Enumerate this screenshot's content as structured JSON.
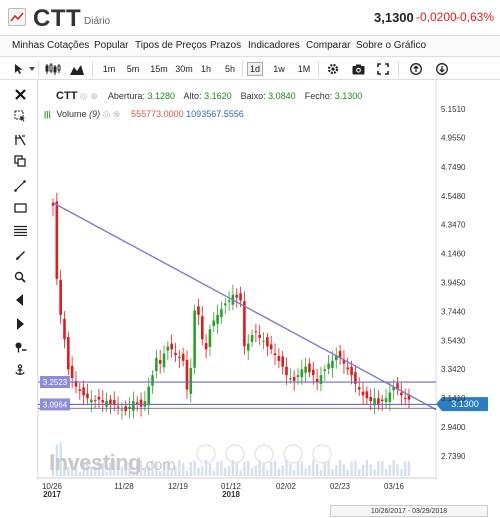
{
  "header": {
    "symbol": "CTT",
    "interval": "Diário",
    "last_price": "3,1300",
    "change": "-0,0200",
    "change_pct": "-0,63%"
  },
  "menu": {
    "items": [
      "Minhas Cotações",
      "Popular",
      "Tipos de Preços",
      "Prazos",
      "Indicadores",
      "Comparar",
      "Sobre o Gráfico"
    ]
  },
  "toolbar": {
    "intervals": [
      "1m",
      "5m",
      "15m",
      "30m",
      "1h",
      "5h",
      "1d",
      "1w",
      "1M"
    ],
    "active_interval": "1d"
  },
  "legend": {
    "symbol": "CTT",
    "open_label": "Abertura:",
    "open": "3.1280",
    "high_label": "Alto:",
    "high": "3.1620",
    "low_label": "Baixo:",
    "low": "3.0840",
    "close_label": "Fecho:",
    "close": "3.1300",
    "volume_label": "Volume",
    "volume_period": "(9)",
    "volume_value": "555773.0000",
    "volume_ma": "1093567.5556"
  },
  "chart_data": {
    "type": "candlestick",
    "y_ticks": [
      "5.1510",
      "4.9550",
      "4.7490",
      "4.5480",
      "4.3470",
      "4.1460",
      "3.9450",
      "3.7440",
      "3.5430",
      "3.3420",
      "3.1410",
      "2.9400",
      "2.7390"
    ],
    "x_ticks": [
      "10/26\n2017",
      "11/28",
      "12/19",
      "01/12\n2018",
      "02/02",
      "02/23",
      "03/16"
    ],
    "price_tag": "3.1300",
    "hline_labels": [
      "3.2523",
      "3.0964"
    ],
    "range_label": "10/26/2017 - 03/29/2018",
    "watermark": "Investing",
    "watermark_suffix": ".com",
    "ylim": [
      2.64,
      5.25
    ],
    "closes": [
      4.48,
      3.97,
      3.72,
      3.55,
      3.34,
      3.28,
      3.22,
      3.19,
      3.16,
      3.14,
      3.13,
      3.12,
      3.13,
      3.11,
      3.12,
      3.1,
      3.1,
      3.08,
      3.06,
      3.05,
      3.08,
      3.12,
      3.1,
      3.08,
      3.12,
      3.22,
      3.3,
      3.42,
      3.38,
      3.45,
      3.5,
      3.48,
      3.44,
      3.42,
      3.4,
      3.2,
      3.35,
      3.75,
      3.72,
      3.55,
      3.48,
      3.62,
      3.68,
      3.72,
      3.76,
      3.8,
      3.82,
      3.86,
      3.84,
      3.82,
      3.5,
      3.52,
      3.58,
      3.6,
      3.56,
      3.54,
      3.5,
      3.48,
      3.44,
      3.4,
      3.36,
      3.3,
      3.28,
      3.26,
      3.3,
      3.34,
      3.36,
      3.32,
      3.3,
      3.25,
      3.3,
      3.34,
      3.38,
      3.4,
      3.44,
      3.42,
      3.38,
      3.34,
      3.3,
      3.24,
      3.2,
      3.16,
      3.14,
      3.12,
      3.14,
      3.1,
      3.12,
      3.14,
      3.18,
      3.22,
      3.2,
      3.16,
      3.14,
      3.13
    ],
    "colors": {
      "up": "#2ca02c",
      "down": "#e31a1c",
      "trendline": "#7b7bd0",
      "hline": "#6a6ac8",
      "tag": "#2c7cc4"
    }
  }
}
